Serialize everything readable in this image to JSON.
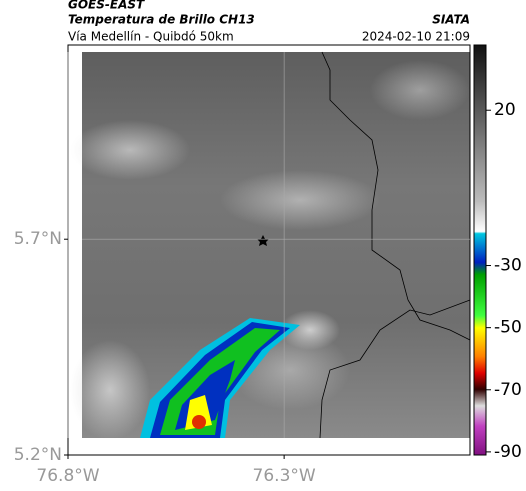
{
  "header": {
    "source": "GOES-EAST",
    "title": "Temperatura de Brillo CH13",
    "subtitle": "Vía Medellín - Quibdó 50km",
    "organization": "SIATA",
    "timestamp": "2024-02-10 21:09"
  },
  "map": {
    "xlim": [
      -76.8,
      -75.87
    ],
    "ylim": [
      5.2,
      6.15
    ],
    "xticks": [
      {
        "value": -76.8,
        "label": "76.8°W"
      },
      {
        "value": -76.3,
        "label": "76.3°W"
      }
    ],
    "yticks": [
      {
        "value": 5.2,
        "label": "5.2°N"
      },
      {
        "value": 5.7,
        "label": "5.7°N"
      }
    ],
    "grid": true
  },
  "colorbar": {
    "clim": [
      -91,
      41
    ],
    "ticks": [
      20,
      -30,
      -50,
      -70,
      -90
    ]
  }
}
